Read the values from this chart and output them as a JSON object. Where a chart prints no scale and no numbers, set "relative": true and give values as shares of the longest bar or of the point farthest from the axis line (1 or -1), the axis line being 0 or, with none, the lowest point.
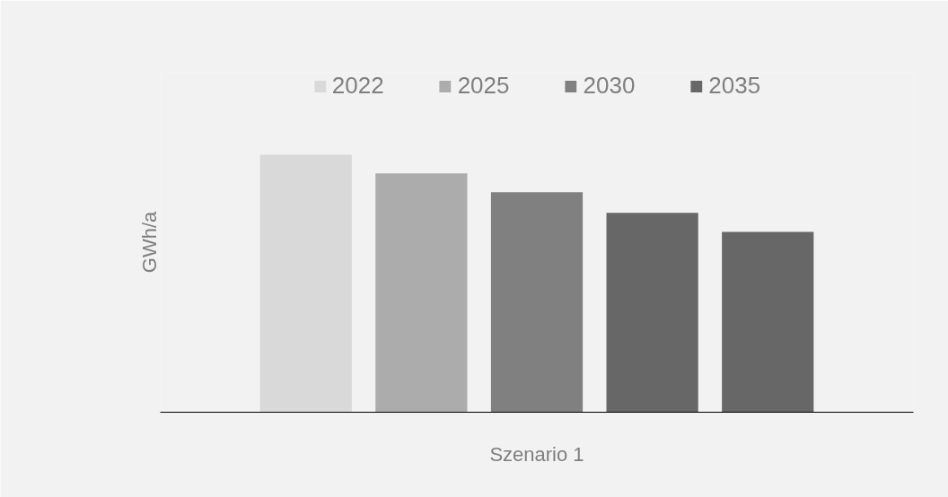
{
  "chart_data": {
    "type": "bar",
    "relative": true,
    "ylabel": "GWh/a",
    "xlabel": "Szenario 1",
    "categories": [
      null
    ],
    "legend": "top",
    "series": [
      {
        "name": "2022",
        "color": "#d9d9d9",
        "values": [
          1
        ]
      },
      {
        "name": "2025",
        "color": "#acacac",
        "values": [
          0.927
        ]
      },
      {
        "name": "2030",
        "color": "#808080",
        "values": [
          0.854
        ]
      },
      {
        "name": "2035",
        "color": "#676767",
        "values": [
          0.774
        ]
      },
      {
        "color": "#676767",
        "values": [
          0.7
        ]
      }
    ]
  }
}
